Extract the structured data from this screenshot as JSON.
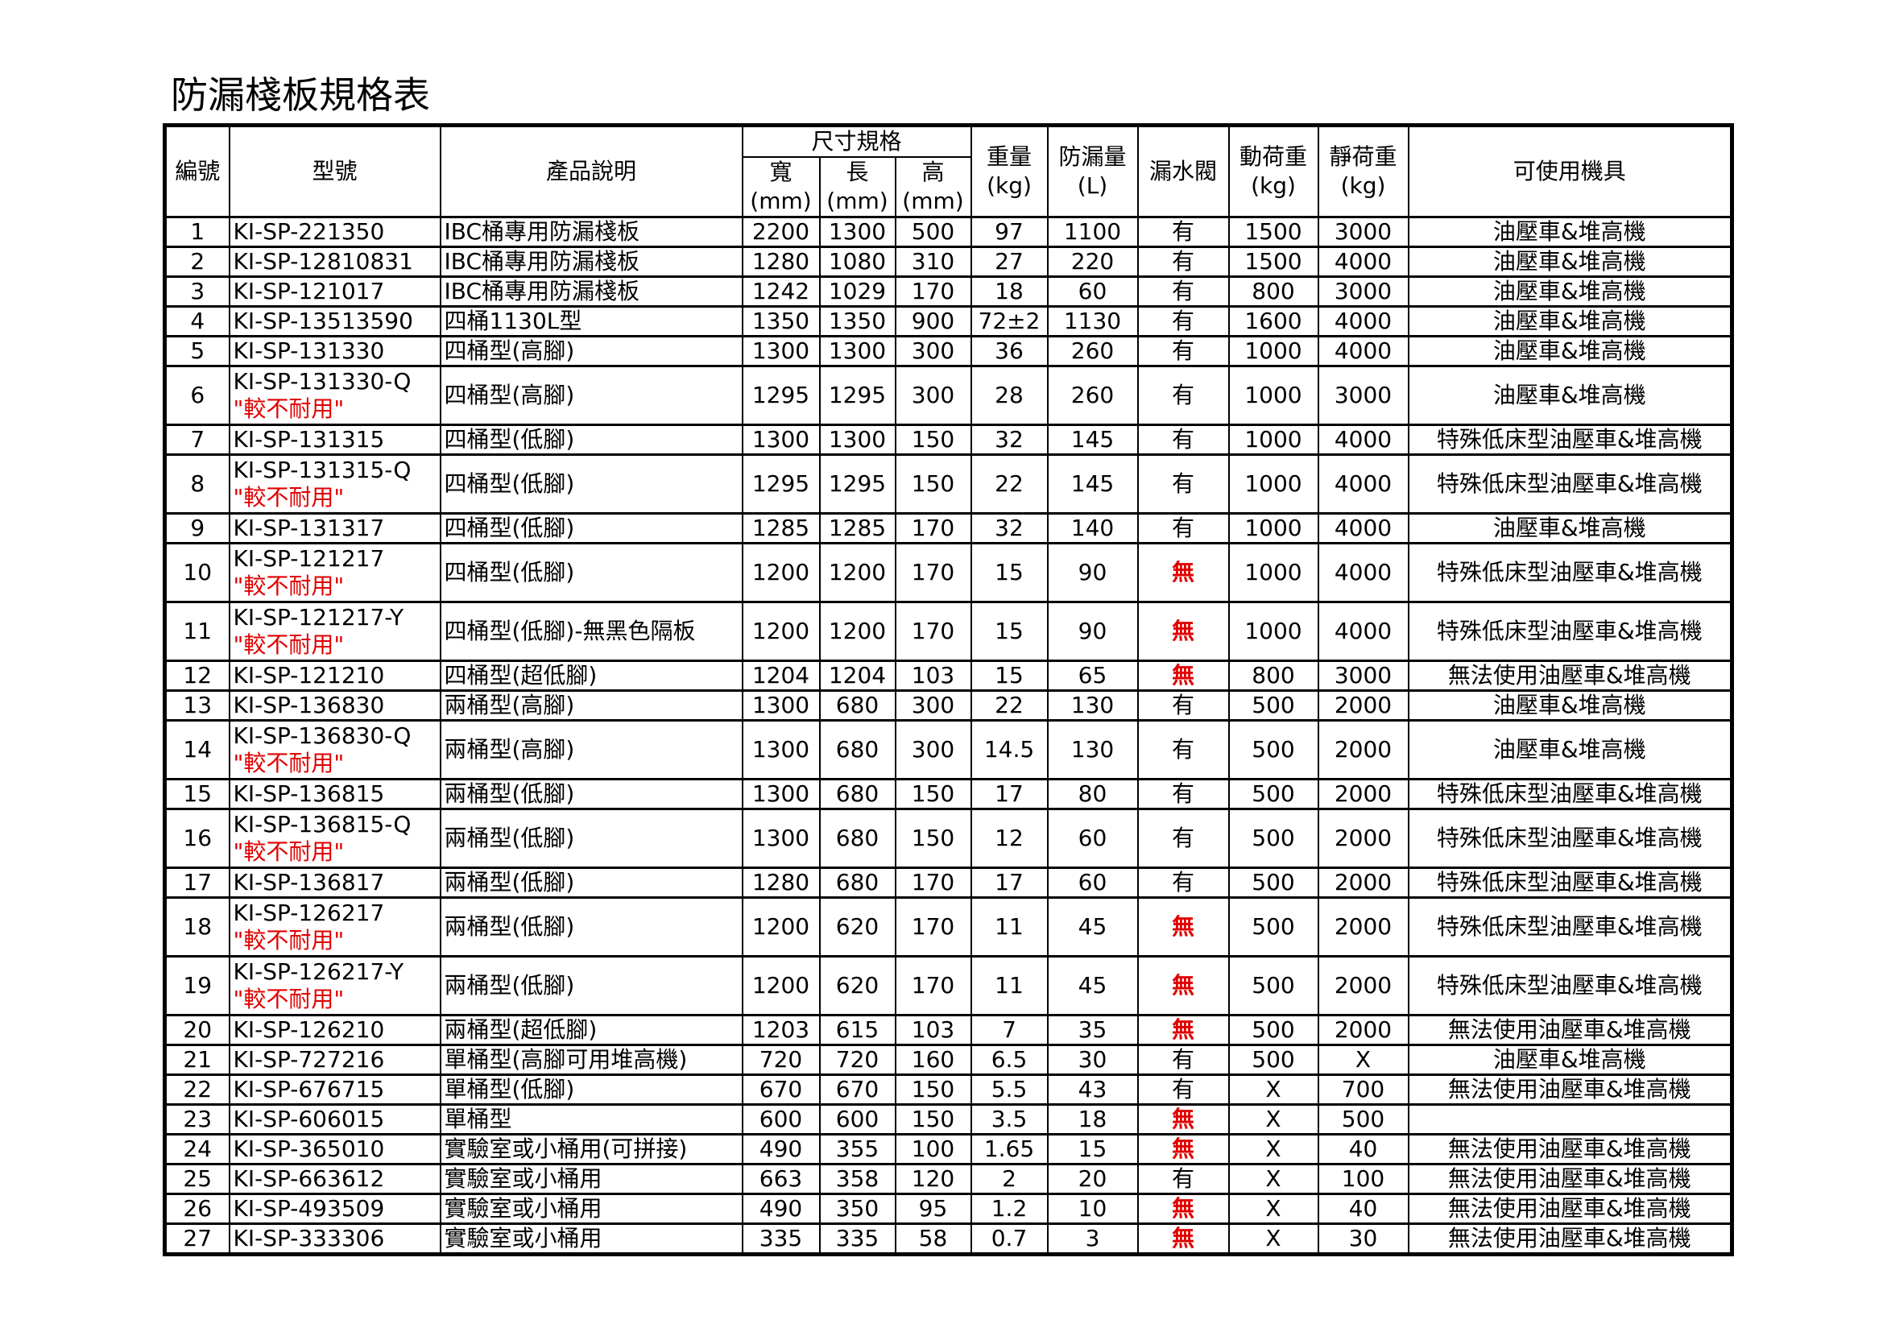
{
  "title": "防漏棧板規格表",
  "header": {
    "no": "編號",
    "model": "型號",
    "desc": "產品說明",
    "size_group": "尺寸規格",
    "width": "寬",
    "length": "長",
    "height": "高",
    "mm": "(mm)",
    "weight": "重量",
    "kg": "(kg)",
    "capacity": "防漏量",
    "liter": "(L)",
    "valve": "漏水閥",
    "dynamic": "動荷重",
    "static": "靜荷重",
    "equipment": "可使用機具"
  },
  "warning_label": "\"較不耐用\"",
  "colors": {
    "warning": "#e00000",
    "no_valve": "#e00000"
  },
  "rows": [
    {
      "no": "1",
      "model": "KI-SP-221350",
      "warn": false,
      "desc": "IBC桶專用防漏棧板",
      "w": "2200",
      "l": "1300",
      "h": "500",
      "kg": "97",
      "cap": "1100",
      "valve": "有",
      "dyn": "1500",
      "sta": "3000",
      "equip": "油壓車&堆高機"
    },
    {
      "no": "2",
      "model": "KI-SP-12810831",
      "warn": false,
      "desc": "IBC桶專用防漏棧板",
      "w": "1280",
      "l": "1080",
      "h": "310",
      "kg": "27",
      "cap": "220",
      "valve": "有",
      "dyn": "1500",
      "sta": "4000",
      "equip": "油壓車&堆高機"
    },
    {
      "no": "3",
      "model": "KI-SP-121017",
      "warn": false,
      "desc": "IBC桶專用防漏棧板",
      "w": "1242",
      "l": "1029",
      "h": "170",
      "kg": "18",
      "cap": "60",
      "valve": "有",
      "dyn": "800",
      "sta": "3000",
      "equip": "油壓車&堆高機"
    },
    {
      "no": "4",
      "model": "KI-SP-13513590",
      "warn": false,
      "desc": "四桶1130L型",
      "w": "1350",
      "l": "1350",
      "h": "900",
      "kg": "72±2",
      "cap": "1130",
      "valve": "有",
      "dyn": "1600",
      "sta": "4000",
      "equip": "油壓車&堆高機"
    },
    {
      "no": "5",
      "model": "KI-SP-131330",
      "warn": false,
      "desc": "四桶型(高腳)",
      "w": "1300",
      "l": "1300",
      "h": "300",
      "kg": "36",
      "cap": "260",
      "valve": "有",
      "dyn": "1000",
      "sta": "4000",
      "equip": "油壓車&堆高機"
    },
    {
      "no": "6",
      "model": "KI-SP-131330-Q",
      "warn": true,
      "desc": "四桶型(高腳)",
      "w": "1295",
      "l": "1295",
      "h": "300",
      "kg": "28",
      "cap": "260",
      "valve": "有",
      "dyn": "1000",
      "sta": "3000",
      "equip": "油壓車&堆高機"
    },
    {
      "no": "7",
      "model": "KI-SP-131315",
      "warn": false,
      "desc": "四桶型(低腳)",
      "w": "1300",
      "l": "1300",
      "h": "150",
      "kg": "32",
      "cap": "145",
      "valve": "有",
      "dyn": "1000",
      "sta": "4000",
      "equip": "特殊低床型油壓車&堆高機"
    },
    {
      "no": "8",
      "model": "KI-SP-131315-Q",
      "warn": true,
      "desc": "四桶型(低腳)",
      "w": "1295",
      "l": "1295",
      "h": "150",
      "kg": "22",
      "cap": "145",
      "valve": "有",
      "dyn": "1000",
      "sta": "4000",
      "equip": "特殊低床型油壓車&堆高機"
    },
    {
      "no": "9",
      "model": "KI-SP-131317",
      "warn": false,
      "desc": "四桶型(低腳)",
      "w": "1285",
      "l": "1285",
      "h": "170",
      "kg": "32",
      "cap": "140",
      "valve": "有",
      "dyn": "1000",
      "sta": "4000",
      "equip": "油壓車&堆高機"
    },
    {
      "no": "10",
      "model": "KI-SP-121217",
      "warn": true,
      "desc": "四桶型(低腳)",
      "w": "1200",
      "l": "1200",
      "h": "170",
      "kg": "15",
      "cap": "90",
      "valve": "無",
      "dyn": "1000",
      "sta": "4000",
      "equip": "特殊低床型油壓車&堆高機"
    },
    {
      "no": "11",
      "model": "KI-SP-121217-Y",
      "warn": true,
      "desc": "四桶型(低腳)-無黑色隔板",
      "w": "1200",
      "l": "1200",
      "h": "170",
      "kg": "15",
      "cap": "90",
      "valve": "無",
      "dyn": "1000",
      "sta": "4000",
      "equip": "特殊低床型油壓車&堆高機"
    },
    {
      "no": "12",
      "model": "KI-SP-121210",
      "warn": false,
      "desc": "四桶型(超低腳)",
      "w": "1204",
      "l": "1204",
      "h": "103",
      "kg": "15",
      "cap": "65",
      "valve": "無",
      "dyn": "800",
      "sta": "3000",
      "equip": "無法使用油壓車&堆高機"
    },
    {
      "no": "13",
      "model": "KI-SP-136830",
      "warn": false,
      "desc": "兩桶型(高腳)",
      "w": "1300",
      "l": "680",
      "h": "300",
      "kg": "22",
      "cap": "130",
      "valve": "有",
      "dyn": "500",
      "sta": "2000",
      "equip": "油壓車&堆高機"
    },
    {
      "no": "14",
      "model": "KI-SP-136830-Q",
      "warn": true,
      "desc": "兩桶型(高腳)",
      "w": "1300",
      "l": "680",
      "h": "300",
      "kg": "14.5",
      "cap": "130",
      "valve": "有",
      "dyn": "500",
      "sta": "2000",
      "equip": "油壓車&堆高機"
    },
    {
      "no": "15",
      "model": "KI-SP-136815",
      "warn": false,
      "desc": "兩桶型(低腳)",
      "w": "1300",
      "l": "680",
      "h": "150",
      "kg": "17",
      "cap": "80",
      "valve": "有",
      "dyn": "500",
      "sta": "2000",
      "equip": "特殊低床型油壓車&堆高機"
    },
    {
      "no": "16",
      "model": "KI-SP-136815-Q",
      "warn": true,
      "desc": "兩桶型(低腳)",
      "w": "1300",
      "l": "680",
      "h": "150",
      "kg": "12",
      "cap": "60",
      "valve": "有",
      "dyn": "500",
      "sta": "2000",
      "equip": "特殊低床型油壓車&堆高機"
    },
    {
      "no": "17",
      "model": "KI-SP-136817",
      "warn": false,
      "desc": "兩桶型(低腳)",
      "w": "1280",
      "l": "680",
      "h": "170",
      "kg": "17",
      "cap": "60",
      "valve": "有",
      "dyn": "500",
      "sta": "2000",
      "equip": "特殊低床型油壓車&堆高機"
    },
    {
      "no": "18",
      "model": "KI-SP-126217",
      "warn": true,
      "desc": "兩桶型(低腳)",
      "w": "1200",
      "l": "620",
      "h": "170",
      "kg": "11",
      "cap": "45",
      "valve": "無",
      "dyn": "500",
      "sta": "2000",
      "equip": "特殊低床型油壓車&堆高機"
    },
    {
      "no": "19",
      "model": "KI-SP-126217-Y",
      "warn": true,
      "desc": "兩桶型(低腳)",
      "w": "1200",
      "l": "620",
      "h": "170",
      "kg": "11",
      "cap": "45",
      "valve": "無",
      "dyn": "500",
      "sta": "2000",
      "equip": "特殊低床型油壓車&堆高機"
    },
    {
      "no": "20",
      "model": "KI-SP-126210",
      "warn": false,
      "desc": "兩桶型(超低腳)",
      "w": "1203",
      "l": "615",
      "h": "103",
      "kg": "7",
      "cap": "35",
      "valve": "無",
      "dyn": "500",
      "sta": "2000",
      "equip": "無法使用油壓車&堆高機"
    },
    {
      "no": "21",
      "model": "KI-SP-727216",
      "warn": false,
      "desc": "單桶型(高腳可用堆高機)",
      "w": "720",
      "l": "720",
      "h": "160",
      "kg": "6.5",
      "cap": "30",
      "valve": "有",
      "dyn": "500",
      "sta": "X",
      "equip": "油壓車&堆高機"
    },
    {
      "no": "22",
      "model": "KI-SP-676715",
      "warn": false,
      "desc": "單桶型(低腳)",
      "w": "670",
      "l": "670",
      "h": "150",
      "kg": "5.5",
      "cap": "43",
      "valve": "有",
      "dyn": "X",
      "sta": "700",
      "equip": "無法使用油壓車&堆高機"
    },
    {
      "no": "23",
      "model": "KI-SP-606015",
      "warn": false,
      "desc": "單桶型",
      "w": "600",
      "l": "600",
      "h": "150",
      "kg": "3.5",
      "cap": "18",
      "valve": "無",
      "dyn": "X",
      "sta": "500",
      "equip": ""
    },
    {
      "no": "24",
      "model": "KI-SP-365010",
      "warn": false,
      "desc": "實驗室或小桶用(可拼接)",
      "w": "490",
      "l": "355",
      "h": "100",
      "kg": "1.65",
      "cap": "15",
      "valve": "無",
      "dyn": "X",
      "sta": "40",
      "equip": "無法使用油壓車&堆高機"
    },
    {
      "no": "25",
      "model": "KI-SP-663612",
      "warn": false,
      "desc": "實驗室或小桶用",
      "w": "663",
      "l": "358",
      "h": "120",
      "kg": "2",
      "cap": "20",
      "valve": "有",
      "dyn": "X",
      "sta": "100",
      "equip": "無法使用油壓車&堆高機"
    },
    {
      "no": "26",
      "model": "KI-SP-493509",
      "warn": false,
      "desc": "實驗室或小桶用",
      "w": "490",
      "l": "350",
      "h": "95",
      "kg": "1.2",
      "cap": "10",
      "valve": "無",
      "dyn": "X",
      "sta": "40",
      "equip": "無法使用油壓車&堆高機"
    },
    {
      "no": "27",
      "model": "KI-SP-333306",
      "warn": false,
      "desc": "實驗室或小桶用",
      "w": "335",
      "l": "335",
      "h": "58",
      "kg": "0.7",
      "cap": "3",
      "valve": "無",
      "dyn": "X",
      "sta": "30",
      "equip": "無法使用油壓車&堆高機"
    }
  ]
}
